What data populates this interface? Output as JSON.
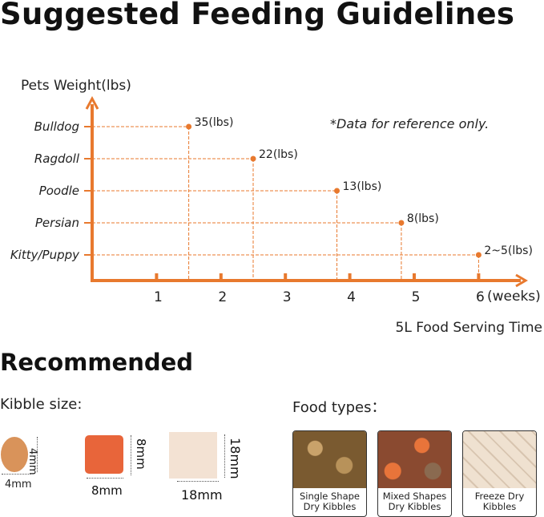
{
  "title": "Suggested Feeding Guidelines",
  "chart_data": {
    "type": "scatter",
    "ylabel": "Pets Weight(lbs)",
    "xlabel": "5L Food Serving Time",
    "x_unit": "(weeks)",
    "x_ticks": [
      1,
      2,
      3,
      4,
      5,
      6
    ],
    "xlim": [
      0,
      7
    ],
    "categories": [
      "Kitty/Puppy",
      "Persian",
      "Poodle",
      "Ragdoll",
      "Bulldog"
    ],
    "points": [
      {
        "category": "Bulldog",
        "weeks": 1.5,
        "label": "35(lbs)"
      },
      {
        "category": "Ragdoll",
        "weeks": 2.5,
        "label": "22(lbs)"
      },
      {
        "category": "Poodle",
        "weeks": 3.8,
        "label": "13(lbs)"
      },
      {
        "category": "Persian",
        "weeks": 4.8,
        "label": "8(lbs)"
      },
      {
        "category": "Kitty/Puppy",
        "weeks": 6,
        "label": "2~5(lbs)"
      }
    ],
    "annotation": "*Data for reference only.",
    "grid": false,
    "color": "#e8792e"
  },
  "recommended": {
    "heading": "Recommended",
    "kibble_label": "Kibble size:",
    "kibbles": [
      {
        "w": "4mm",
        "h": "4mm",
        "color": "#d9935a"
      },
      {
        "w": "8mm",
        "h": "8mm",
        "color": "#e8653a"
      },
      {
        "w": "18mm",
        "h": "18mm",
        "color": "#f3e2d3"
      }
    ],
    "food_label": "Food types：",
    "food_types": [
      {
        "line1": "Single Shape",
        "line2": "Dry Kibbles"
      },
      {
        "line1": "Mixed Shapes",
        "line2": "Dry Kibbles"
      },
      {
        "line1": "Freeze Dry",
        "line2": "Kibbles"
      }
    ]
  }
}
